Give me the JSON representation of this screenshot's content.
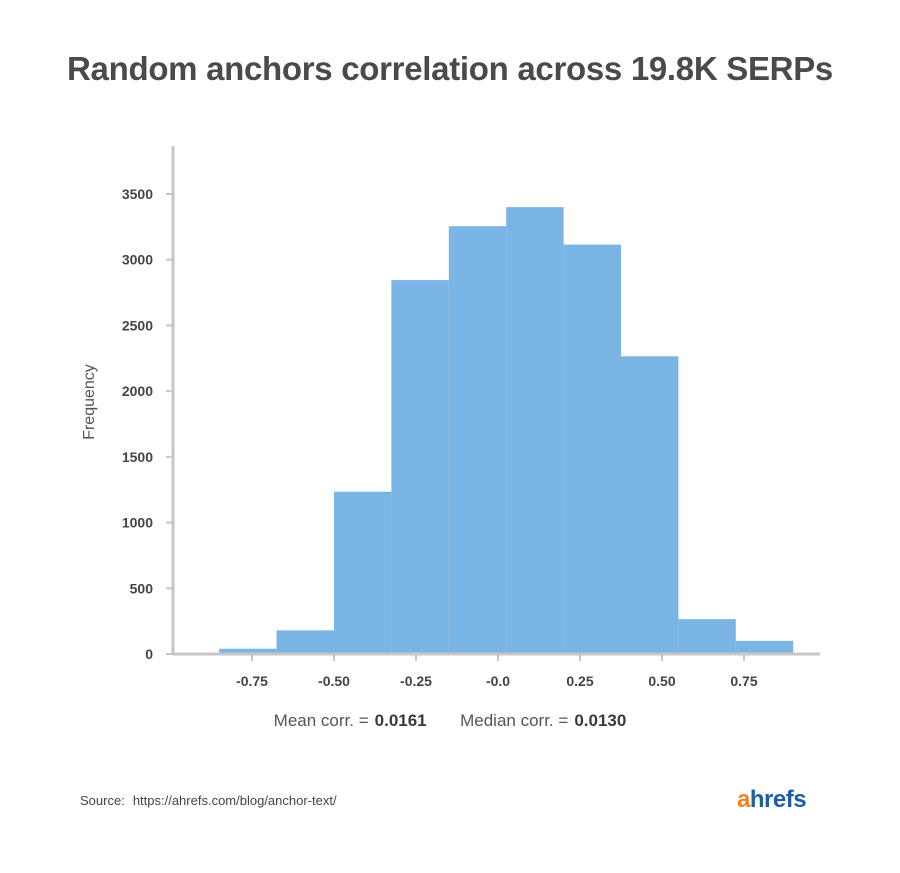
{
  "title": "Random anchors correlation across 19.8K SERPs",
  "chart_data": {
    "type": "bar",
    "subtype": "histogram",
    "bin_edges": [
      -0.85,
      -0.675,
      -0.5,
      -0.325,
      -0.15,
      0.025,
      0.2,
      0.375,
      0.55,
      0.725,
      0.9
    ],
    "values": [
      40,
      180,
      1235,
      2845,
      3255,
      3400,
      3115,
      2265,
      265,
      100
    ],
    "xticks": [
      "-0.75",
      "-0.50",
      "-0.25",
      "-0.0",
      "0.25",
      "0.50",
      "0.75"
    ],
    "xtick_values": [
      -0.75,
      -0.5,
      -0.25,
      0.0,
      0.25,
      0.5,
      0.75
    ],
    "yticks": [
      "0",
      "500",
      "1000",
      "1500",
      "2000",
      "2500",
      "3000",
      "3500"
    ],
    "ylabel": "Frequency",
    "xlabel": "",
    "xlim": [
      -0.98,
      1.0
    ],
    "ylim": [
      0,
      3700
    ],
    "bar_color": "#7ab5e5",
    "axis_color": "#c6c6c6",
    "grid": false
  },
  "stats": {
    "mean_label": "Mean corr. =",
    "mean_value": "0.0161",
    "median_label": "Median corr. =",
    "median_value": "0.0130"
  },
  "source": {
    "label": "Source:",
    "url": "https://ahrefs.com/blog/anchor-text/"
  },
  "logo": {
    "first": "a",
    "rest": "hrefs"
  }
}
